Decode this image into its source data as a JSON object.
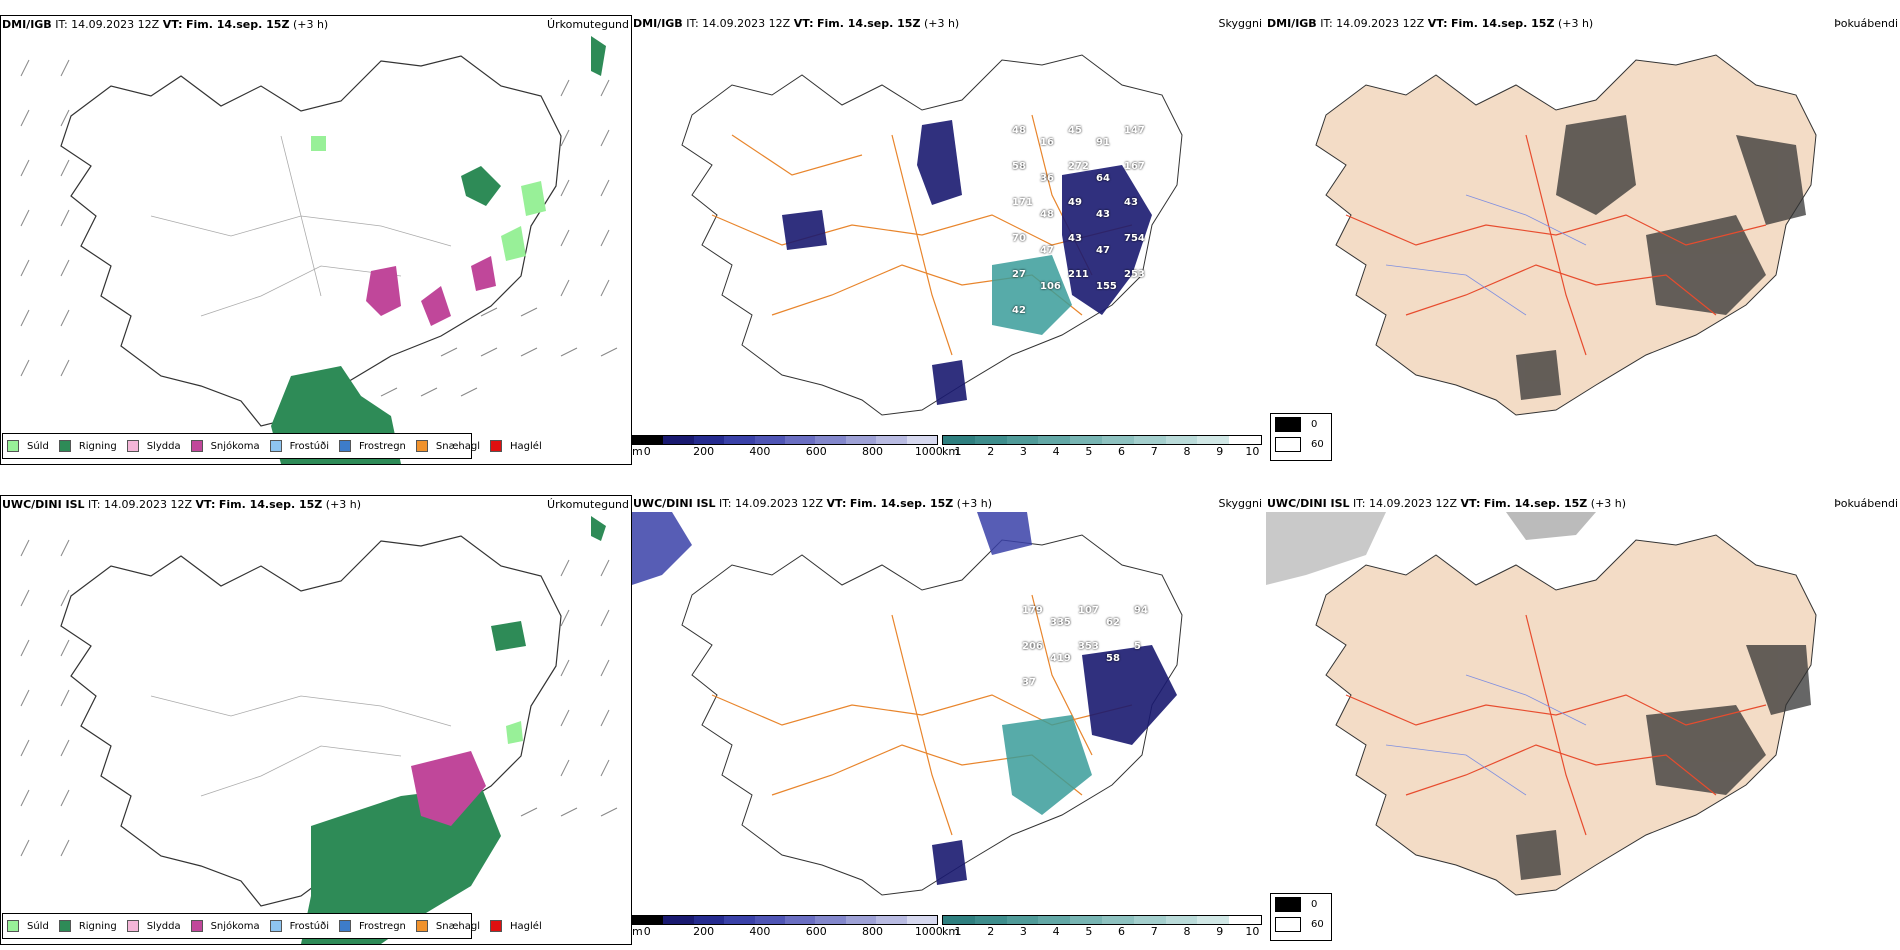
{
  "top": {
    "precip": {
      "model": "DMI/IGB",
      "it_label": "IT:",
      "it_value": "14.09.2023 12Z",
      "vt_label": "VT:",
      "vt_value": "Fim. 14.sep. 15Z",
      "lead": "(+3 h)",
      "right_title": "Úrkomutegund"
    },
    "cloud": {
      "model": "DMI/IGB",
      "it_label": "IT:",
      "it_value": "14.09.2023 12Z",
      "vt_label": "VT:",
      "vt_value": "Fim. 14.sep. 15Z",
      "lead": "(+3 h)",
      "right_title": "Skyggni",
      "labels": [
        "48",
        "16",
        "45",
        "91",
        "147",
        "58",
        "36",
        "272",
        "64",
        "167",
        "171",
        "48",
        "49",
        "43",
        "43",
        "70",
        "47",
        "43",
        "47",
        "754",
        "27",
        "106",
        "211",
        "155",
        "253",
        "42"
      ]
    },
    "fog": {
      "model": "DMI/IGB",
      "it_label": "IT:",
      "it_value": "14.09.2023 12Z",
      "vt_label": "VT:",
      "vt_value": "Fim. 14.sep. 15Z",
      "lead": "(+3 h)",
      "right_title": "Þokuábendi"
    }
  },
  "bottom": {
    "precip": {
      "model": "UWC/DINI ISL",
      "it_label": "IT:",
      "it_value": "14.09.2023 12Z",
      "vt_label": "VT:",
      "vt_value": "Fim. 14.sep. 15Z",
      "lead": "(+3 h)",
      "right_title": "Úrkomutegund"
    },
    "cloud": {
      "model": "UWC/DINI ISL",
      "it_label": "IT:",
      "it_value": "14.09.2023 12Z",
      "vt_label": "VT:",
      "vt_value": "Fim. 14.sep. 15Z",
      "lead": "(+3 h)",
      "right_title": "Skyggni",
      "labels": [
        "179",
        "335",
        "107",
        "62",
        "94",
        "206",
        "419",
        "353",
        "58",
        "5",
        "37"
      ]
    },
    "fog": {
      "model": "UWC/DINI ISL",
      "it_label": "IT:",
      "it_value": "14.09.2023 12Z",
      "vt_label": "VT:",
      "vt_value": "Fim. 14.sep. 15Z",
      "lead": "(+3 h)",
      "right_title": "Þokuábendi"
    }
  },
  "precip_legend": [
    {
      "label": "Súld",
      "color": "#98f098"
    },
    {
      "label": "Rigning",
      "color": "#2e8b57"
    },
    {
      "label": "Slydda",
      "color": "#f4b6d8"
    },
    {
      "label": "Snjókoma",
      "color": "#c0479a"
    },
    {
      "label": "Frostúði",
      "color": "#8ec4f0"
    },
    {
      "label": "Frostregn",
      "color": "#3d7cc9"
    },
    {
      "label": "Snæhagl",
      "color": "#f0922d"
    },
    {
      "label": "Haglél",
      "color": "#e01010"
    }
  ],
  "cloud_base_bar": {
    "unit": "m",
    "ticks": [
      "0",
      "200",
      "400",
      "600",
      "800",
      "1000"
    ],
    "colors": [
      "#000000",
      "#191970",
      "#252b8f",
      "#3a41a8",
      "#4f55b5",
      "#6a6ec2",
      "#8387cc",
      "#9ea1d6",
      "#b9bbe2",
      "#d6d8ef"
    ]
  },
  "visibility_bar": {
    "unit": "km",
    "ticks": [
      "1",
      "2",
      "3",
      "4",
      "5",
      "6",
      "7",
      "8",
      "9",
      "10"
    ],
    "colors": [
      "#2f7f7f",
      "#3e8d8c",
      "#509b99",
      "#63a8a6",
      "#78b5b3",
      "#8ec2c0",
      "#a4cfcd",
      "#badbd9",
      "#d1e8e6",
      "#ffffff"
    ]
  },
  "fog_legend": {
    "values": [
      "0",
      "60"
    ],
    "colors": [
      "#000000",
      "#ffffff"
    ]
  }
}
